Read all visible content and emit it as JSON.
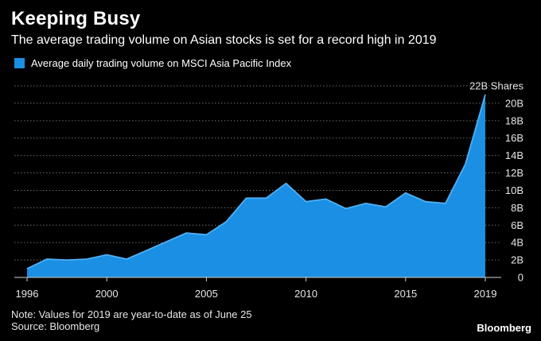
{
  "header": {
    "title": "Keeping Busy",
    "subtitle": "The average trading volume on Asian stocks is set for a record high in 2019"
  },
  "legend": {
    "label": "Average daily trading volume on MSCI Asia Pacific Index",
    "color": "#1a8fe3"
  },
  "footer": {
    "note": "Note: Values for 2019 are year-to-date as of June 25",
    "source": "Source: Bloomberg",
    "brand": "Bloomberg"
  },
  "chart_data": {
    "type": "area",
    "title": "Keeping Busy",
    "subtitle": "The average trading volume on Asian stocks is set for a record high in 2019",
    "xlabel": "",
    "ylabel": "",
    "top_tick_label": "22B Shares",
    "x": [
      1996,
      1997,
      1998,
      1999,
      2000,
      2001,
      2002,
      2003,
      2004,
      2005,
      2006,
      2007,
      2008,
      2009,
      2010,
      2011,
      2012,
      2013,
      2014,
      2015,
      2016,
      2017,
      2018,
      2019
    ],
    "values": [
      1.0,
      2.1,
      2.0,
      2.1,
      2.6,
      2.1,
      3.1,
      4.1,
      5.1,
      4.9,
      6.4,
      9.1,
      9.1,
      10.8,
      8.7,
      9.0,
      7.9,
      8.5,
      8.1,
      9.7,
      8.7,
      8.5,
      13.0,
      21.0
    ],
    "series": [
      {
        "name": "Average daily trading volume on MSCI Asia Pacific Index",
        "color": "#1a8fe3"
      }
    ],
    "xlim": [
      1996,
      2019
    ],
    "ylim": [
      0,
      22
    ],
    "x_ticks": [
      1996,
      2000,
      2005,
      2010,
      2015,
      2019
    ],
    "y_ticks": [
      0,
      2,
      4,
      6,
      8,
      10,
      12,
      14,
      16,
      18,
      20,
      22
    ],
    "y_tick_labels": [
      "0",
      "2B",
      "4B",
      "6B",
      "8B",
      "10B",
      "12B",
      "14B",
      "16B",
      "18B",
      "20B",
      "22B Shares"
    ],
    "grid": true,
    "colors": {
      "fill": "#1a8fe3",
      "line": "#4fb0f5",
      "grid": "#6e6e6e",
      "axis": "#cfcfcf"
    }
  }
}
